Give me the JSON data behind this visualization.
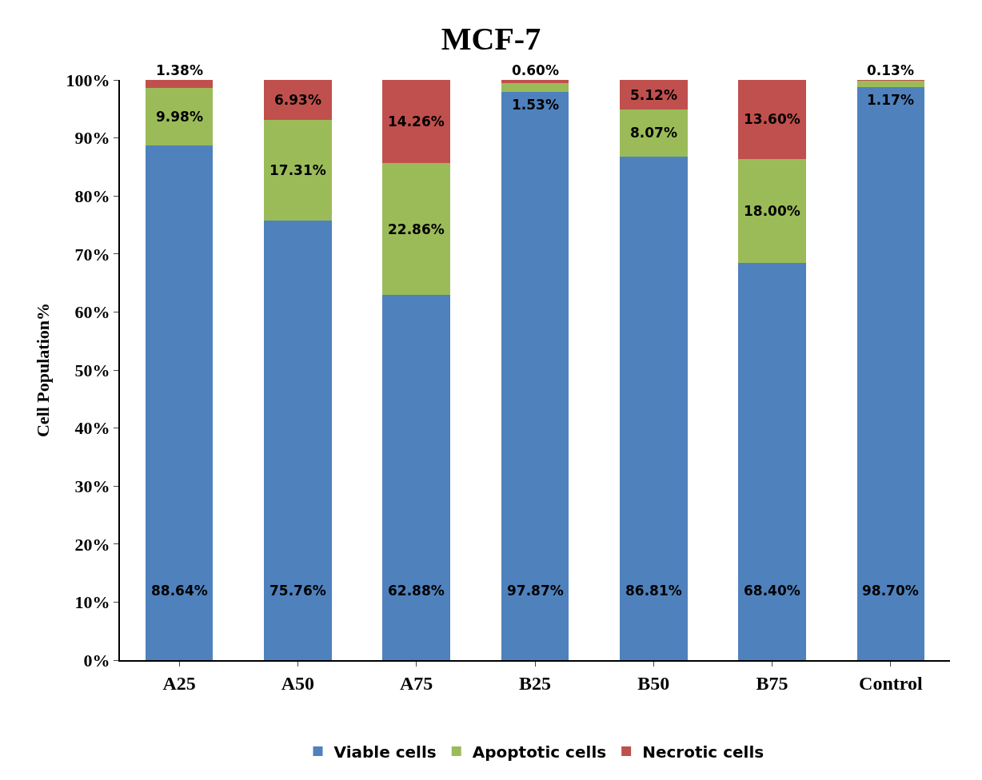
{
  "chart_data": {
    "type": "bar",
    "title": "MCF-7",
    "ylabel": "Cell Population%",
    "stacked": true,
    "categories": [
      "A25",
      "A50",
      "A75",
      "B25",
      "B50",
      "B75",
      "Control"
    ],
    "series": [
      {
        "name": "Viable cells",
        "color": "#4f81bd",
        "values": [
          88.64,
          75.76,
          62.88,
          97.87,
          86.81,
          68.4,
          98.7
        ],
        "value_labels": [
          "88.64%",
          "75.76%",
          "62.88%",
          "97.87%",
          "86.81%",
          "68.40%",
          "98.70%"
        ]
      },
      {
        "name": "Apoptotic cells",
        "color": "#9bbb59",
        "values": [
          9.98,
          17.31,
          22.86,
          1.53,
          8.07,
          18.0,
          1.17
        ],
        "value_labels": [
          "9.98%",
          "17.31%",
          "22.86%",
          "1.53%",
          "8.07%",
          "18.00%",
          "1.17%"
        ]
      },
      {
        "name": "Necrotic cells",
        "color": "#c0504d",
        "values": [
          1.38,
          6.93,
          14.26,
          0.6,
          5.12,
          13.6,
          0.13
        ],
        "value_labels": [
          "1.38%",
          "6.93%",
          "14.26%",
          "0.60%",
          "5.12%",
          "13.60%",
          "0.13%"
        ]
      }
    ],
    "ylim": [
      0,
      100
    ],
    "yticks": [
      {
        "value": 0,
        "label": "0%"
      },
      {
        "value": 10,
        "label": "10%"
      },
      {
        "value": 20,
        "label": "20%"
      },
      {
        "value": 30,
        "label": "30%"
      },
      {
        "value": 40,
        "label": "40%"
      },
      {
        "value": 50,
        "label": "50%"
      },
      {
        "value": 60,
        "label": "60%"
      },
      {
        "value": 70,
        "label": "70%"
      },
      {
        "value": 80,
        "label": "80%"
      },
      {
        "value": 90,
        "label": "90%"
      },
      {
        "value": 100,
        "label": "100%"
      }
    ],
    "legend": "bottom"
  }
}
